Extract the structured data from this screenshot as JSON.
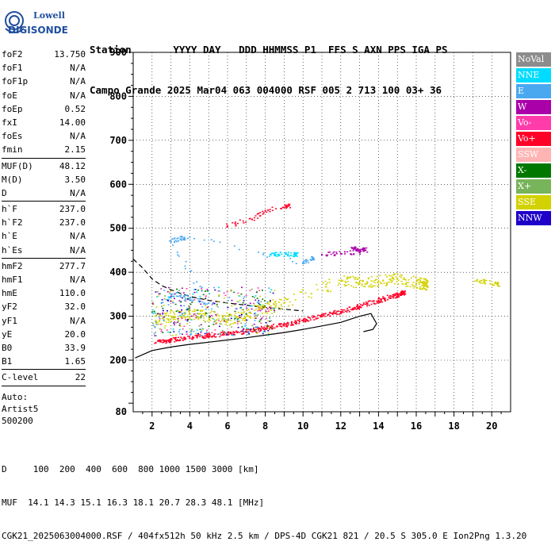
{
  "logo": {
    "line1": "Lowell",
    "line2": "DIGISONDE"
  },
  "header": {
    "labels": "Station       YYYY DAY   DDD HHMMSS P1  FFS S AXN PPS IGA PS",
    "values": "Campo Grande 2025 Mar04 063 004000 RSF 005 2 713 100 03+ 36"
  },
  "params_group1": [
    {
      "name": "foF2",
      "value": "13.750"
    },
    {
      "name": "foF1",
      "value": "N/A"
    },
    {
      "name": "foF1p",
      "value": "N/A"
    },
    {
      "name": "foE",
      "value": "N/A"
    },
    {
      "name": "foEp",
      "value": "0.52"
    },
    {
      "name": "fxI",
      "value": "14.00"
    },
    {
      "name": "foEs",
      "value": "N/A"
    },
    {
      "name": "fmin",
      "value": "2.15"
    }
  ],
  "params_group2": [
    {
      "name": "MUF(D)",
      "value": "48.12"
    },
    {
      "name": "M(D)",
      "value": "3.50"
    },
    {
      "name": "D",
      "value": "N/A"
    }
  ],
  "params_group3": [
    {
      "name": "h`F",
      "value": "237.0"
    },
    {
      "name": "h`F2",
      "value": "237.0"
    },
    {
      "name": "h`E",
      "value": "N/A"
    },
    {
      "name": "h`Es",
      "value": "N/A"
    }
  ],
  "params_group4": [
    {
      "name": "hmF2",
      "value": "277.7"
    },
    {
      "name": "hmF1",
      "value": "N/A"
    },
    {
      "name": "hmE",
      "value": "110.0"
    },
    {
      "name": "yF2",
      "value": "32.0"
    },
    {
      "name": "yF1",
      "value": "N/A"
    },
    {
      "name": "yE",
      "value": "20.0"
    },
    {
      "name": "B0",
      "value": "33.9"
    },
    {
      "name": "B1",
      "value": "1.65"
    }
  ],
  "params_group5": [
    {
      "name": "C-level",
      "value": "22"
    }
  ],
  "auto_lines": [
    "Auto:",
    "Artist5",
    "500200"
  ],
  "legend": [
    {
      "label": "NoVal",
      "color": "#8c8c8c"
    },
    {
      "label": "NNE",
      "color": "#00dcff"
    },
    {
      "label": "E",
      "color": "#4aa8f0"
    },
    {
      "label": "W",
      "color": "#aa00aa"
    },
    {
      "label": "Vo-",
      "color": "#ff3caa"
    },
    {
      "label": "Vo+",
      "color": "#ff0028"
    },
    {
      "label": "SSW",
      "color": "#ffb4b4"
    },
    {
      "label": "X-",
      "color": "#007800"
    },
    {
      "label": "X+",
      "color": "#78b45a"
    },
    {
      "label": "SSE",
      "color": "#d2d200"
    },
    {
      "label": "NNW",
      "color": "#1e00c8"
    }
  ],
  "footer": {
    "line1": "D     100  200  400  600  800 1000 1500 3000 [km]",
    "line2": "MUF  14.1 14.3 15.1 16.3 18.1 20.7 28.3 48.1 [MHz]",
    "line3": "CGK21_2025063004000.RSF / 404fx512h 50 kHz 2.5 km / DPS-4D CGK21 821 / 20.5 S 305.0 E Ion2Png 1.3.20"
  },
  "chart_data": {
    "type": "scatter",
    "title": "",
    "xlabel": "",
    "ylabel": "",
    "xlim": [
      1,
      21
    ],
    "ylim": [
      80,
      900
    ],
    "x_ticks": [
      2,
      4,
      6,
      8,
      10,
      12,
      14,
      16,
      18,
      20
    ],
    "y_ticks": [
      80,
      200,
      300,
      400,
      500,
      600,
      700,
      800,
      900
    ],
    "virtual_height_trace": {
      "color": "#000000",
      "x": [
        1.1,
        2.0,
        3.0,
        4.0,
        5.0,
        6.0,
        7.0,
        8.0,
        9.0,
        10.0,
        11.0,
        12.0,
        13.0,
        13.6,
        13.9,
        13.7,
        13.2
      ],
      "y": [
        205,
        222,
        230,
        236,
        241,
        246,
        251,
        257,
        263,
        270,
        278,
        286,
        300,
        306,
        283,
        270,
        265
      ]
    },
    "dashed_profile": {
      "color": "#000000",
      "x": [
        1.0,
        1.5,
        2.0,
        2.5,
        3.0,
        3.5,
        4.0,
        5.0,
        6.0,
        7.0,
        8.0,
        9.0,
        10.0
      ],
      "y": [
        430,
        410,
        385,
        370,
        360,
        352,
        345,
        336,
        330,
        325,
        320,
        316,
        312
      ]
    },
    "echo_clusters": [
      {
        "name": "O trace",
        "color": "#ff0028",
        "points": [
          [
            2.2,
            240
          ],
          [
            3,
            245
          ],
          [
            4,
            250
          ],
          [
            5,
            255
          ],
          [
            6,
            260
          ],
          [
            7,
            265
          ],
          [
            8,
            272
          ],
          [
            9,
            280
          ],
          [
            10,
            290
          ],
          [
            11,
            300
          ],
          [
            12,
            310
          ],
          [
            13,
            322
          ],
          [
            14,
            335
          ],
          [
            14.8,
            345
          ],
          [
            15.3,
            352
          ]
        ]
      },
      {
        "name": "F region spread",
        "color": "#d2d200",
        "points": [
          [
            2.2,
            290
          ],
          [
            3,
            300
          ],
          [
            4,
            305
          ],
          [
            5,
            300
          ],
          [
            6,
            290
          ],
          [
            7,
            300
          ],
          [
            8,
            320
          ],
          [
            9,
            330
          ],
          [
            12,
            380
          ],
          [
            13,
            375
          ],
          [
            14,
            380
          ],
          [
            15,
            385
          ],
          [
            16,
            375
          ],
          [
            16.5,
            372
          ]
        ]
      },
      {
        "name": "multi-hop oblique",
        "color": "#4aa8f0",
        "points": [
          [
            2.5,
            330
          ],
          [
            3.2,
            350
          ],
          [
            4,
            340
          ],
          [
            5,
            330
          ],
          [
            3,
            470
          ],
          [
            3.5,
            475
          ],
          [
            4,
            480
          ],
          [
            10,
            420
          ],
          [
            10.5,
            430
          ]
        ]
      },
      {
        "name": "high oblique",
        "color": "#00dcff",
        "points": [
          [
            8.3,
            440
          ],
          [
            8.7,
            440
          ],
          [
            9.2,
            440
          ],
          [
            9.6,
            440
          ]
        ]
      },
      {
        "name": "W echoes",
        "color": "#aa00aa",
        "points": [
          [
            11,
            440
          ],
          [
            12,
            442
          ],
          [
            13,
            445
          ],
          [
            12.6,
            455
          ],
          [
            13.3,
            450
          ]
        ]
      },
      {
        "name": "sporadic high",
        "color": "#ff0028",
        "points": [
          [
            6,
            505
          ],
          [
            7.3,
            520
          ],
          [
            8,
            540
          ],
          [
            9.2,
            550
          ]
        ]
      },
      {
        "name": "far spread",
        "color": "#d2d200",
        "points": [
          [
            19.2,
            380
          ],
          [
            19.6,
            378
          ],
          [
            20.3,
            372
          ]
        ]
      }
    ]
  }
}
